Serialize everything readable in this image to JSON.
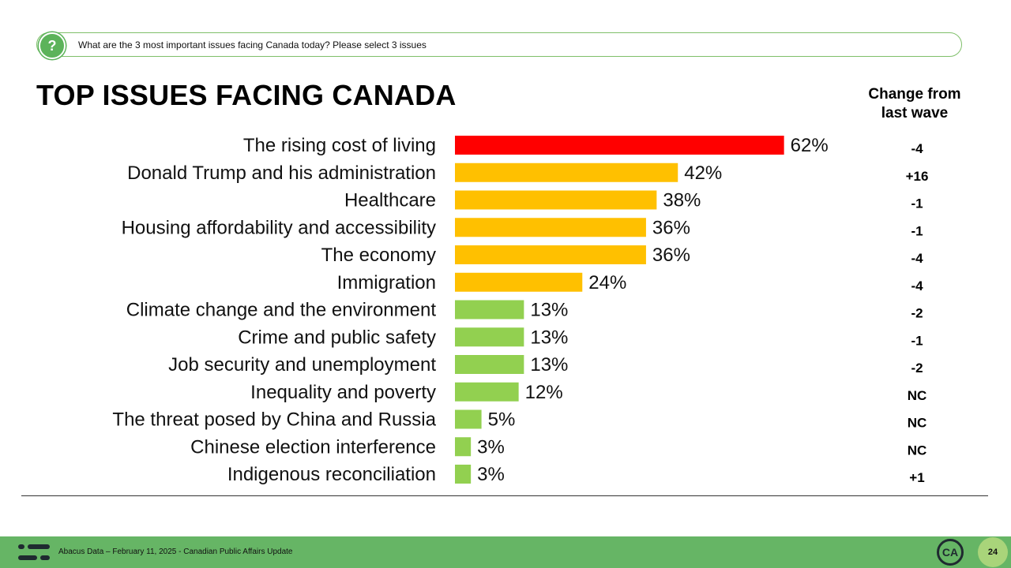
{
  "question": {
    "icon": "question-icon",
    "text": "What are the 3 most important issues facing Canada today? Please select 3 issues"
  },
  "title": "TOP ISSUES FACING CANADA",
  "change_header": {
    "line1": "Change from",
    "line2": "last wave"
  },
  "chart_data": {
    "type": "bar",
    "orientation": "horizontal",
    "categories": [
      "The rising cost of living",
      "Donald Trump and his administration",
      "Healthcare",
      "Housing affordability and accessibility",
      "The economy",
      "Immigration",
      "Climate change and the environment",
      "Crime and public safety",
      "Job security and unemployment",
      "Inequality and poverty",
      "The threat posed by China and Russia",
      "Chinese election interference",
      "Indigenous reconciliation"
    ],
    "values": [
      62,
      42,
      38,
      36,
      36,
      24,
      13,
      13,
      13,
      12,
      5,
      3,
      3
    ],
    "value_labels": [
      "62%",
      "42%",
      "38%",
      "36%",
      "36%",
      "24%",
      "13%",
      "13%",
      "13%",
      "12%",
      "5%",
      "3%",
      "3%"
    ],
    "change": [
      "-4",
      "+16",
      "-1",
      "-1",
      "-4",
      "-4",
      "-2",
      "-1",
      "-2",
      "NC",
      "NC",
      "NC",
      "+1"
    ],
    "bar_colors": [
      "#ff0000",
      "#ffc000",
      "#ffc000",
      "#ffc000",
      "#ffc000",
      "#ffc000",
      "#92d050",
      "#92d050",
      "#92d050",
      "#92d050",
      "#92d050",
      "#92d050",
      "#92d050"
    ],
    "grid": false
  },
  "footer": {
    "logo_icon": "abacus-logo-icon",
    "text": "Abacus Data – February 11, 2025 - Canadian Public Affairs Update",
    "badge_icon": "ca-logo-icon",
    "badge_text": "CA",
    "page_number": "24"
  },
  "colors": {
    "accent_green": "#66b565",
    "outline_green": "#7fbf6a",
    "page_badge": "#a9d47a"
  }
}
